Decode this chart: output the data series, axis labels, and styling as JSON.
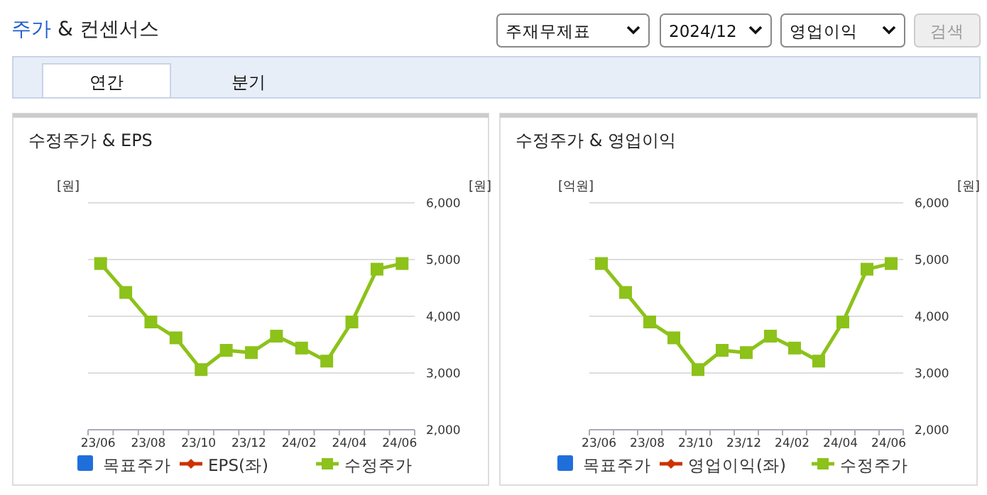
{
  "chart_data": [
    {
      "type": "other",
      "title": "주가 & 컨센서스",
      "annotations": [
        "주재무제표",
        "2024/12",
        "영업이익",
        "검색",
        "연간",
        "분기"
      ]
    },
    {
      "type": "line",
      "title": "수정주가 & EPS",
      "ylabel": "[원]",
      "y2label": "[원]",
      "categories": [
        "23/06",
        null,
        "23/08",
        null,
        "23/10",
        null,
        "23/12",
        null,
        "24/02",
        null,
        "24/04",
        null,
        "24/06"
      ],
      "y2lim": [
        2000,
        6000
      ],
      "y2ticks": [
        {
          "value": 2000,
          "label": "2,000"
        },
        {
          "value": 3000,
          "label": "3,000"
        },
        {
          "value": 4000,
          "label": "4,000"
        },
        {
          "value": 5000,
          "label": "5,000"
        },
        {
          "value": 6000,
          "label": "6,000"
        }
      ],
      "grid": true,
      "legend": "bottom",
      "series": [
        {
          "name": "목표주가",
          "color": "#1f6fdb",
          "marker": "square",
          "values": [
            null,
            null,
            null,
            null,
            null,
            null,
            null,
            null,
            null,
            null,
            null,
            null,
            null
          ]
        },
        {
          "name": "EPS(좌)",
          "color": "#cc3300",
          "marker": "diamond",
          "values": [
            null,
            null,
            null,
            null,
            null,
            null,
            null,
            null,
            null,
            null,
            null,
            null,
            null
          ]
        },
        {
          "name": "수정주가",
          "color": "#8cc21a",
          "marker": "square",
          "axis": "y2",
          "values": [
            4930,
            4420,
            3900,
            3620,
            3060,
            3400,
            3360,
            3650,
            3440,
            3210,
            3900,
            4830,
            4930
          ]
        }
      ]
    },
    {
      "type": "line",
      "title": "수정주가 & 영업이익",
      "ylabel": "[억원]",
      "y2label": "[원]",
      "categories": [
        "23/06",
        null,
        "23/08",
        null,
        "23/10",
        null,
        "23/12",
        null,
        "24/02",
        null,
        "24/04",
        null,
        "24/06"
      ],
      "y2lim": [
        2000,
        6000
      ],
      "y2ticks": [
        {
          "value": 2000,
          "label": "2,000"
        },
        {
          "value": 3000,
          "label": "3,000"
        },
        {
          "value": 4000,
          "label": "4,000"
        },
        {
          "value": 5000,
          "label": "5,000"
        },
        {
          "value": 6000,
          "label": "6,000"
        }
      ],
      "grid": true,
      "legend": "bottom",
      "series": [
        {
          "name": "목표주가",
          "color": "#1f6fdb",
          "marker": "square",
          "values": [
            null,
            null,
            null,
            null,
            null,
            null,
            null,
            null,
            null,
            null,
            null,
            null,
            null
          ]
        },
        {
          "name": "영업이익(좌)",
          "color": "#cc3300",
          "marker": "diamond",
          "values": [
            null,
            null,
            null,
            null,
            null,
            null,
            null,
            null,
            null,
            null,
            null,
            null,
            null
          ]
        },
        {
          "name": "수정주가",
          "color": "#8cc21a",
          "marker": "square",
          "axis": "y2",
          "values": [
            4930,
            4420,
            3900,
            3620,
            3060,
            3400,
            3360,
            3650,
            3440,
            3210,
            3900,
            4830,
            4930
          ]
        }
      ]
    }
  ]
}
